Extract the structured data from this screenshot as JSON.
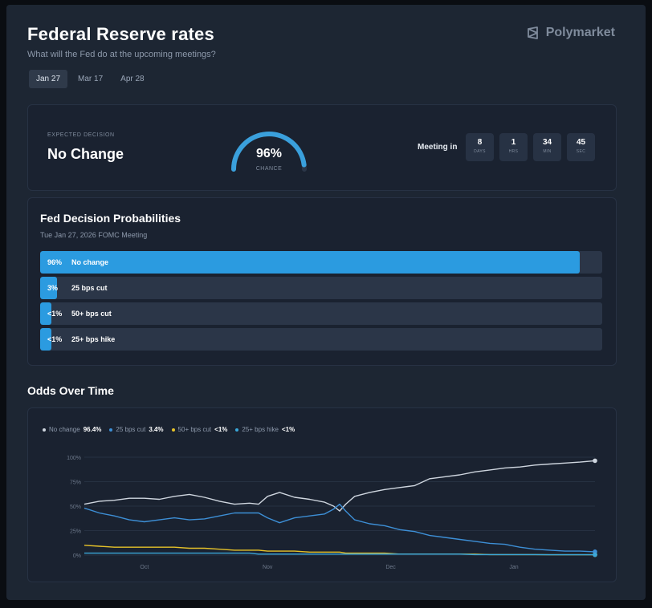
{
  "header": {
    "title": "Federal Reserve rates",
    "subtitle": "What will the Fed do at the upcoming meetings?",
    "brand": "Polymarket",
    "brand_icon": "polymarket-logo-icon"
  },
  "tabs": [
    {
      "label": "Jan 27",
      "active": true
    },
    {
      "label": "Mar 17",
      "active": false
    },
    {
      "label": "Apr 28",
      "active": false
    }
  ],
  "decision": {
    "label": "EXPECTED DECISION",
    "value": "No Change",
    "gauge_value": "96%",
    "gauge_fraction": 0.96,
    "gauge_label": "CHANCE",
    "meeting_label": "Meeting in",
    "countdown": [
      {
        "value": "8",
        "unit": "DAYS"
      },
      {
        "value": "1",
        "unit": "HRS"
      },
      {
        "value": "34",
        "unit": "MIN"
      },
      {
        "value": "45",
        "unit": "SEC"
      }
    ]
  },
  "probabilities": {
    "title": "Fed Decision Probabilities",
    "subtitle": "Tue Jan 27, 2026 FOMC Meeting",
    "rows": [
      {
        "pct": "96%",
        "label": "No change",
        "value": 96
      },
      {
        "pct": "3%",
        "label": "25 bps cut",
        "value": 3
      },
      {
        "pct": "<1%",
        "label": "50+ bps cut",
        "value": 1
      },
      {
        "pct": "<1%",
        "label": "25+ bps hike",
        "value": 1
      }
    ]
  },
  "odds": {
    "title": "Odds Over Time",
    "legend": [
      {
        "name": "No change",
        "value": "96.4%",
        "color": "#cfd6df"
      },
      {
        "name": "25 bps cut",
        "value": "3.4%",
        "color": "#3d8fd6"
      },
      {
        "name": "50+ bps cut",
        "value": "<1%",
        "color": "#e6c229"
      },
      {
        "name": "25+ bps hike",
        "value": "<1%",
        "color": "#3aa7d9"
      }
    ]
  },
  "colors": {
    "accent": "#2b9be0",
    "background": "#1d2633",
    "card": "#1a2230"
  },
  "chart_data": {
    "type": "line",
    "xlabel": "",
    "ylabel": "",
    "ylim": [
      0,
      100
    ],
    "ytick_labels": [
      "0%",
      "25%",
      "50%",
      "75%",
      "100%"
    ],
    "ytick_values": [
      0,
      25,
      50,
      75,
      100
    ],
    "xtick_labels": [
      "Oct",
      "Nov",
      "Dec",
      "Jan"
    ],
    "xtick_positions": [
      20,
      61,
      102,
      143
    ],
    "x": [
      0,
      5,
      10,
      15,
      20,
      25,
      30,
      35,
      40,
      45,
      50,
      55,
      58,
      61,
      65,
      70,
      75,
      80,
      83,
      85,
      87,
      90,
      95,
      100,
      105,
      110,
      115,
      120,
      125,
      130,
      135,
      140,
      145,
      150,
      155,
      160,
      165,
      170
    ],
    "series": [
      {
        "name": "No change",
        "color": "#cfd6df",
        "values": [
          52,
          55,
          56,
          58,
          58,
          57,
          60,
          62,
          59,
          55,
          52,
          53,
          52,
          60,
          64,
          59,
          57,
          54,
          50,
          45,
          52,
          60,
          64,
          67,
          69,
          71,
          78,
          80,
          82,
          85,
          87,
          89,
          90,
          92,
          93,
          94,
          95,
          96.4
        ]
      },
      {
        "name": "25 bps cut",
        "color": "#3d8fd6",
        "values": [
          48,
          43,
          40,
          36,
          34,
          36,
          38,
          36,
          37,
          40,
          43,
          43,
          43,
          38,
          33,
          38,
          40,
          42,
          47,
          52,
          45,
          36,
          32,
          30,
          26,
          24,
          20,
          18,
          16,
          14,
          12,
          11,
          8,
          6,
          5,
          4,
          4,
          3.4
        ]
      },
      {
        "name": "50+ bps cut",
        "color": "#e6c229",
        "values": [
          10,
          9,
          8,
          8,
          8,
          8,
          8,
          7,
          7,
          6,
          5,
          5,
          5,
          4,
          4,
          4,
          3,
          3,
          3,
          3,
          2,
          2,
          2,
          2,
          1,
          1,
          1,
          1,
          1,
          1,
          0.5,
          0.5,
          0.5,
          0.5,
          0.3,
          0.3,
          0.3,
          0.3
        ]
      },
      {
        "name": "25+ bps hike",
        "color": "#3aa7d9",
        "values": [
          2,
          2,
          2,
          2,
          2,
          2,
          2,
          2,
          2,
          2,
          2,
          2,
          1,
          1,
          1,
          1,
          1,
          1,
          1,
          1,
          1,
          1,
          1,
          1,
          1,
          1,
          1,
          1,
          1,
          0.5,
          0.5,
          0.5,
          0.5,
          0.5,
          0.3,
          0.3,
          0.3,
          0.3
        ]
      }
    ]
  }
}
